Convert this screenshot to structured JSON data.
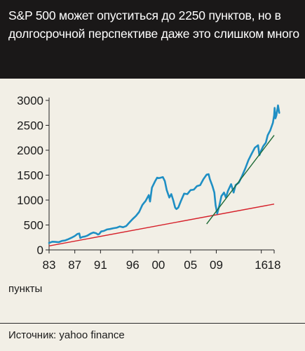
{
  "header": {
    "title": "S&P 500 может опуститься до 2250 пунктов, но в долгосрочной перспективе даже это слишком много"
  },
  "unit_label": "пункты",
  "source": "Источник: yahoo finance",
  "colors": {
    "background": "#f2efe6",
    "header_bg": "#1a1818",
    "series": "#1f8fc4",
    "long_trend": "#d6202a",
    "recent_trend": "#1e6a36"
  },
  "chart_data": {
    "type": "line",
    "title": "S&P 500 может опуститься до 2250 пунктов, но в долгосрочной перспективе даже это слишком много",
    "ylabel": "пункты",
    "xlim": [
      1983,
      2018
    ],
    "ylim": [
      0,
      3000
    ],
    "yticks": [
      0,
      500,
      1000,
      1500,
      2000,
      2500,
      3000
    ],
    "xticks": [
      {
        "value": 1983,
        "label": "83"
      },
      {
        "value": 1987,
        "label": "87"
      },
      {
        "value": 1991,
        "label": "91"
      },
      {
        "value": 1996,
        "label": "96"
      },
      {
        "value": 2000,
        "label": "00"
      },
      {
        "value": 2005,
        "label": "05"
      },
      {
        "value": 2009,
        "label": "09"
      },
      {
        "value": 2016,
        "label": "16"
      },
      {
        "value": 2018,
        "label": "18"
      }
    ],
    "grid": false,
    "series": [
      {
        "x": [
          1983.0,
          1983.5,
          1984.0,
          1984.5,
          1985.0,
          1985.5,
          1986.0,
          1986.5,
          1987.0,
          1987.4,
          1987.7,
          1987.85,
          1988.2,
          1988.6,
          1989.0,
          1989.5,
          1989.9,
          1990.3,
          1990.6,
          1990.8,
          1991.1,
          1991.5,
          1992.0,
          1992.5,
          1993.0,
          1993.5,
          1994.0,
          1994.5,
          1995.0,
          1995.5,
          1996.0,
          1996.5,
          1997.0,
          1997.5,
          1997.8,
          1998.0,
          1998.5,
          1998.7,
          1999.0,
          1999.5,
          1999.8,
          2000.1,
          2000.7,
          2001.0,
          2001.3,
          2001.7,
          2002.0,
          2002.3,
          2002.6,
          2002.8,
          2003.1,
          2003.5,
          2004.0,
          2004.5,
          2005.0,
          2005.5,
          2006.0,
          2006.5,
          2007.0,
          2007.5,
          2007.8,
          2008.0,
          2008.4,
          2008.7,
          2008.9,
          2009.15,
          2009.5,
          2009.8,
          2010.2,
          2010.5,
          2010.8,
          2011.3,
          2011.7,
          2012.0,
          2012.5,
          2013.0,
          2013.5,
          2014.0,
          2014.5,
          2015.0,
          2015.5,
          2015.7,
          2016.0,
          2016.3,
          2016.7,
          2017.0,
          2017.4,
          2017.8,
          2018.0,
          2018.08,
          2018.2,
          2018.35,
          2018.6,
          2018.8
        ],
        "y": [
          140,
          165,
          160,
          155,
          180,
          190,
          215,
          245,
          280,
          320,
          330,
          240,
          260,
          270,
          290,
          330,
          350,
          335,
          310,
          320,
          370,
          380,
          410,
          420,
          435,
          445,
          470,
          455,
          480,
          550,
          620,
          680,
          760,
          900,
          950,
          980,
          1100,
          970,
          1250,
          1380,
          1450,
          1440,
          1460,
          1380,
          1200,
          1050,
          1120,
          1000,
          850,
          820,
          850,
          980,
          1130,
          1120,
          1200,
          1210,
          1280,
          1300,
          1420,
          1510,
          1520,
          1420,
          1280,
          1150,
          900,
          730,
          900,
          1080,
          1150,
          1050,
          1180,
          1320,
          1150,
          1300,
          1350,
          1480,
          1630,
          1800,
          1930,
          2050,
          2100,
          1900,
          2000,
          2080,
          2150,
          2300,
          2400,
          2550,
          2700,
          2850,
          2640,
          2700,
          2900,
          2750
        ]
      }
    ],
    "trendlines": [
      {
        "x": [
          1983,
          2018
        ],
        "y": [
          80,
          920
        ]
      },
      {
        "x": [
          2007.5,
          2018
        ],
        "y": [
          520,
          2300
        ]
      }
    ]
  }
}
